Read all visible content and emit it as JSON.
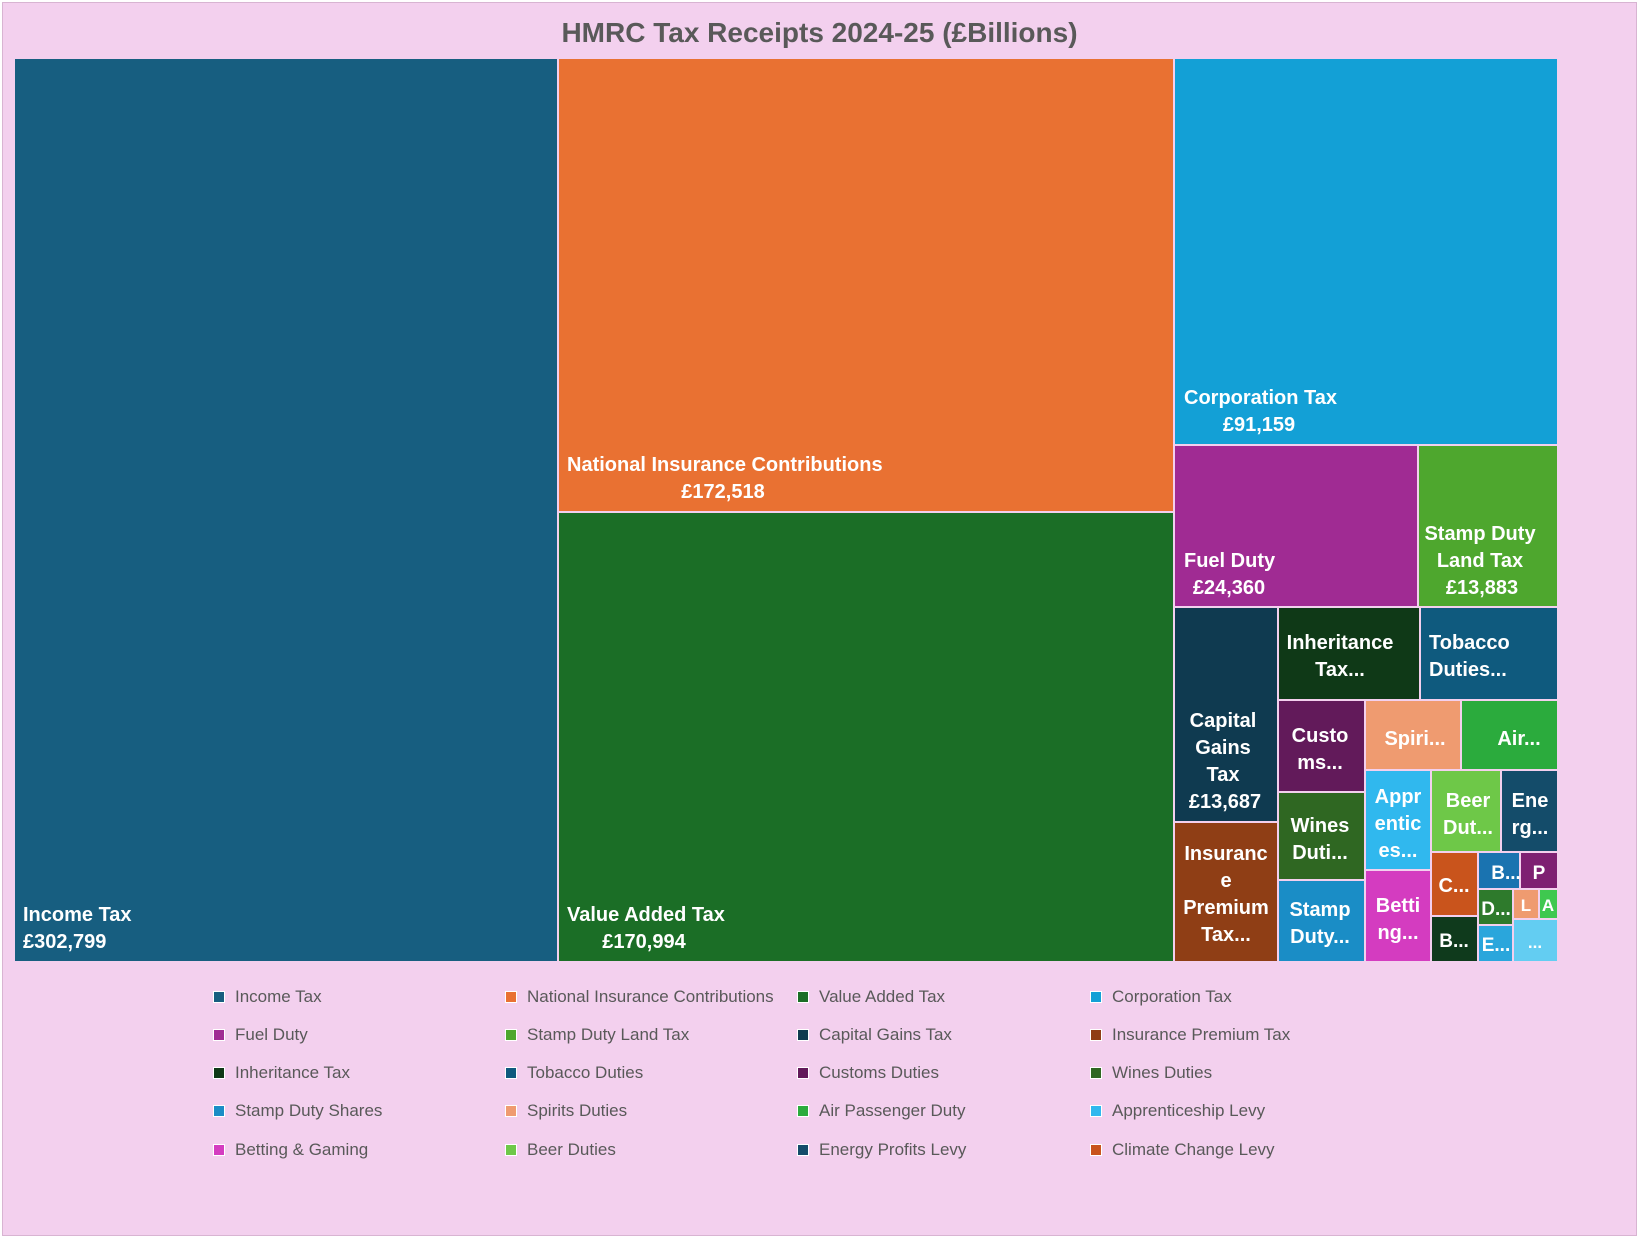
{
  "chart_data": {
    "type": "treemap",
    "title": "HMRC Tax Receipts 2024-25 (£Billions)",
    "legend_position": "bottom",
    "background": "#f3d0ee",
    "series": [
      {
        "name": "Income Tax",
        "label": "Income Tax",
        "value_label": "£302,799",
        "value": 302799,
        "color": "#175e80"
      },
      {
        "name": "National Insurance Contributions",
        "label": "National Insurance Contributions",
        "value_label": "£172,518",
        "value": 172518,
        "color": "#e97132"
      },
      {
        "name": "Value Added Tax",
        "label": "Value Added Tax",
        "value_label": "£170,994",
        "value": 170994,
        "color": "#1b6e26"
      },
      {
        "name": "Corporation Tax",
        "label": "Corporation Tax",
        "value_label": "£91,159",
        "value": 91159,
        "color": "#13a0d6"
      },
      {
        "name": "Fuel Duty",
        "label": "Fuel Duty",
        "value_label": "£24,360",
        "value": 24360,
        "color": "#a02b93"
      },
      {
        "name": "Stamp Duty Land Tax",
        "label": "Stamp Duty Land Tax",
        "value_label": "£13,883",
        "value": 13883,
        "color": "#4ea72e"
      },
      {
        "name": "Capital Gains Tax",
        "label": "Capital Gains Tax",
        "value_label": "£13,687",
        "value": 13687,
        "color": "#0f3a50"
      },
      {
        "name": "Insurance Premium Tax",
        "label": "Insurance Premium Tax...",
        "value_label": "",
        "value": null,
        "color": "#8f3e15"
      },
      {
        "name": "Inheritance Tax",
        "label": "Inheritance Tax...",
        "value_label": "",
        "value": null,
        "color": "#0f3917"
      },
      {
        "name": "Tobacco Duties",
        "label": "Tobacco Duties...",
        "value_label": "",
        "value": null,
        "color": "#0f5a7e"
      },
      {
        "name": "Customs Duties",
        "label": "Custo ms...",
        "value_label": "",
        "value": null,
        "color": "#621a5a"
      },
      {
        "name": "Wines Duties",
        "label": "Wines Duti...",
        "value_label": "",
        "value": null,
        "color": "#2f6722"
      },
      {
        "name": "Stamp Duty Shares",
        "label": "Stamp Duty...",
        "value_label": "",
        "value": null,
        "color": "#1a8dc6"
      },
      {
        "name": "Spirits Duties",
        "label": "Spiri...",
        "value_label": "",
        "value": null,
        "color": "#ef9b70"
      },
      {
        "name": "Air Passenger Duty",
        "label": "Air...",
        "value_label": "",
        "value": null,
        "color": "#2bab3d"
      },
      {
        "name": "Apprenticeship Levy",
        "label": "Appr entic es...",
        "value_label": "",
        "value": null,
        "color": "#30b8ee"
      },
      {
        "name": "Betting & Gaming",
        "label": "Betti ng...",
        "value_label": "",
        "value": null,
        "color": "#d43cc0"
      },
      {
        "name": "Beer Duties",
        "label": "Beer Dut...",
        "value_label": "",
        "value": null,
        "color": "#6ec848"
      },
      {
        "name": "Energy Profits Levy",
        "label": "Ene rg...",
        "value_label": "",
        "value": null,
        "color": "#144c6a"
      },
      {
        "name": "Climate Change Levy",
        "label": "C...",
        "value_label": "",
        "value": null,
        "color": "#c9541c"
      }
    ],
    "unlabeled_small_tiles": [
      {
        "label": "B...",
        "color": "#1a73b0"
      },
      {
        "label": "P",
        "color": "#7e2072"
      },
      {
        "label": "D...",
        "color": "#2e7a2c"
      },
      {
        "label": "L",
        "color": "#ef9b70"
      },
      {
        "label": "A",
        "color": "#3fc84f"
      },
      {
        "label": "B...",
        "color": "#0f3a1c"
      },
      {
        "label": "E...",
        "color": "#2aa6dc"
      },
      {
        "label": "...",
        "color": "#63cdf2"
      }
    ]
  }
}
